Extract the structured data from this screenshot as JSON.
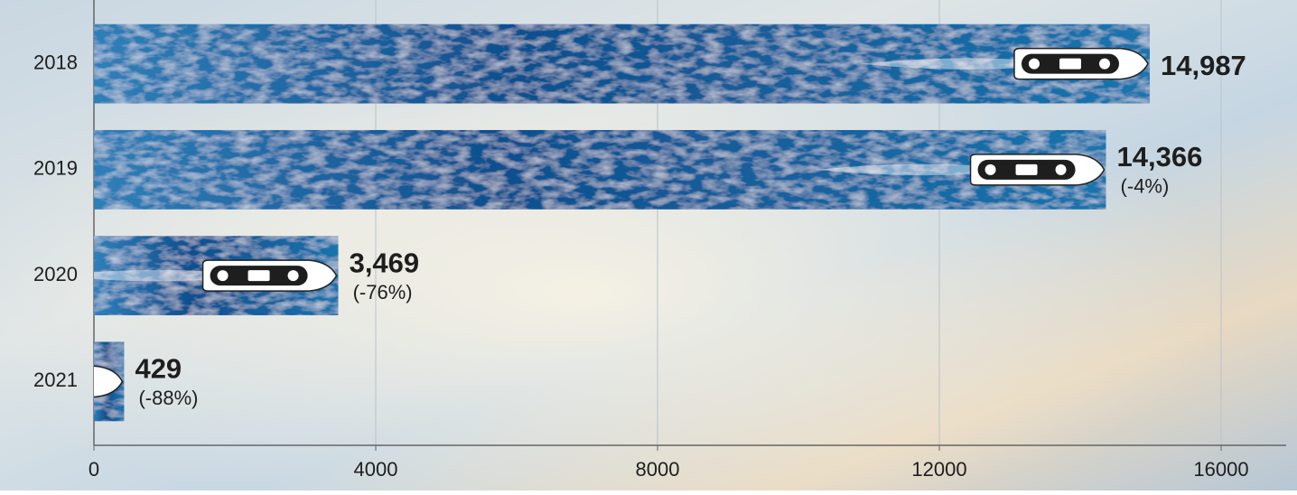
{
  "chart_data": {
    "type": "bar",
    "orientation": "horizontal",
    "categories": [
      "2018",
      "2019",
      "2020",
      "2021"
    ],
    "values": [
      14987,
      14366,
      3469,
      429
    ],
    "value_labels": [
      "14,987",
      "14,366",
      "3,469",
      "429"
    ],
    "change_labels": [
      null,
      "(-4%)",
      "(-76%)",
      "(-88%)"
    ],
    "color": "#1463a3",
    "xlim": [
      0,
      17000
    ],
    "xticks": [
      0,
      4000,
      8000,
      12000,
      16000
    ],
    "grid": true
  }
}
